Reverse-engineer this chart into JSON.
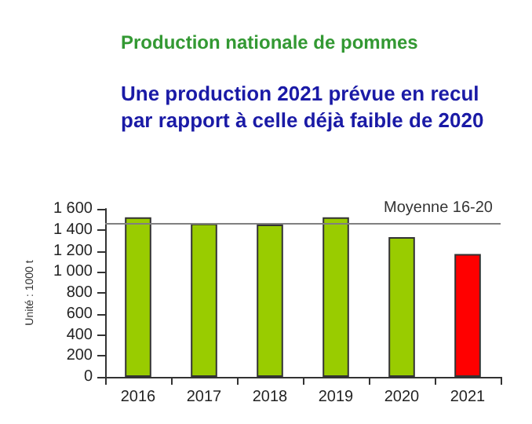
{
  "chart_data": {
    "type": "bar",
    "title": "Production nationale de pommes",
    "subtitle": "Une production 2021 prévue en recul\npar rapport à celle déjà faible de 2020",
    "ylabel": "Unité : 1000 t",
    "categories": [
      "2016",
      "2017",
      "2018",
      "2019",
      "2020",
      "2021"
    ],
    "values": [
      1520,
      1460,
      1450,
      1520,
      1330,
      1170
    ],
    "colors": [
      "#99cc00",
      "#99cc00",
      "#99cc00",
      "#99cc00",
      "#99cc00",
      "#ff0000"
    ],
    "ylim": [
      0,
      1600
    ],
    "yticks": [
      0,
      200,
      400,
      600,
      800,
      {
        "value": 1000,
        "label": "1 000"
      },
      {
        "value": 1200,
        "label": "1 200"
      },
      {
        "value": 1400,
        "label": "1 400"
      },
      {
        "value": 1600,
        "label": "1 600"
      }
    ],
    "ref_lines": [
      {
        "axis": "y",
        "value": 1460,
        "label": "Moyenne 16-20",
        "color": "#808080"
      }
    ],
    "grid": false
  }
}
